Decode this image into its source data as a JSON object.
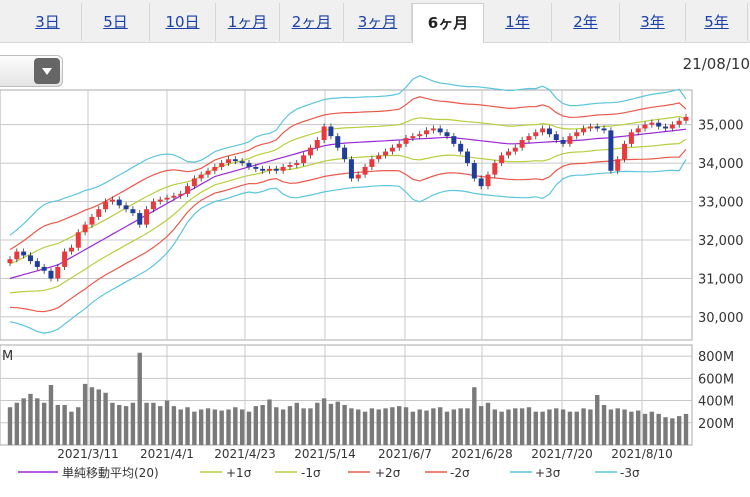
{
  "tabs": [
    {
      "label": "3日"
    },
    {
      "label": "5日"
    },
    {
      "label": "10日"
    },
    {
      "label": "1ヶ月"
    },
    {
      "label": "2ヶ月"
    },
    {
      "label": "3ヶ月"
    },
    {
      "label": "6ヶ月",
      "active": true
    },
    {
      "label": "1年"
    },
    {
      "label": "2年"
    },
    {
      "label": "3年"
    },
    {
      "label": "5年"
    }
  ],
  "header": {
    "date": "21/08/10"
  },
  "colors": {
    "up": "#e8393d",
    "down": "#1f3d9a",
    "ma": "#9b27d6",
    "s1": "#b7cf3e",
    "s2": "#e8594a",
    "s3": "#5bc6dc",
    "volume": "#7a7a7a",
    "grid": "#c8c8c8"
  },
  "chart_data": [
    {
      "type": "line",
      "title": "",
      "y_ticks": [
        "35,000",
        "34,000",
        "33,000",
        "32,000",
        "31,000",
        "30,000"
      ],
      "y_tick_values": [
        35000,
        34000,
        33000,
        32000,
        31000,
        30000
      ],
      "ylim": [
        29400,
        35900
      ],
      "x_ticks": [
        "2021/3/11",
        "2021/4/1",
        "2021/4/23",
        "2021/5/14",
        "2021/6/7",
        "2021/6/28",
        "2021/7/20",
        "2021/8/10"
      ],
      "legend": [
        {
          "name": "単純移動平均(20)",
          "color": "#9b27d6"
        },
        {
          "name": "+1σ",
          "color": "#b7cf3e"
        },
        {
          "name": "-1σ",
          "color": "#b7cf3e"
        },
        {
          "name": "+2σ",
          "color": "#e8594a"
        },
        {
          "name": "-2σ",
          "color": "#e8594a"
        },
        {
          "name": "+3σ",
          "color": "#5bc6dc"
        },
        {
          "name": "-3σ",
          "color": "#5bc6dc"
        }
      ],
      "close": [
        31500,
        31700,
        31600,
        31450,
        31300,
        31200,
        31000,
        31300,
        31700,
        31800,
        32200,
        32400,
        32600,
        32800,
        33000,
        33050,
        32900,
        32800,
        32700,
        32400,
        32800,
        33000,
        33050,
        33100,
        33150,
        33200,
        33400,
        33600,
        33700,
        33800,
        33900,
        34000,
        34100,
        34050,
        34000,
        33900,
        33850,
        33800,
        33850,
        33800,
        33900,
        33950,
        34000,
        34200,
        34400,
        34600,
        34950,
        34700,
        34400,
        34100,
        33600,
        33700,
        33900,
        34100,
        34200,
        34300,
        34400,
        34500,
        34650,
        34700,
        34750,
        34850,
        34900,
        34800,
        34700,
        34500,
        34300,
        34000,
        33600,
        33400,
        33700,
        34000,
        34200,
        34300,
        34400,
        34600,
        34700,
        34800,
        34900,
        34750,
        34600,
        34500,
        34700,
        34800,
        34900,
        34950,
        34900,
        34850,
        33800,
        34100,
        34500,
        34800,
        34900,
        35000,
        35050,
        34950,
        34900,
        35000,
        35100,
        35200
      ],
      "ma": [
        31000,
        31050,
        31100,
        31150,
        31200,
        31250,
        31300,
        31350,
        31450,
        31550,
        31650,
        31750,
        31850,
        31950,
        32050,
        32150,
        32250,
        32350,
        32450,
        32550,
        32650,
        32750,
        32850,
        32950,
        33050,
        33150,
        33250,
        33350,
        33450,
        33550,
        33650,
        33700,
        33750,
        33800,
        33850,
        33900,
        33950,
        34000,
        34050,
        34100,
        34150,
        34200,
        34250,
        34300,
        34350,
        34400,
        34450,
        34480,
        34500,
        34520,
        34530,
        34540,
        34550,
        34560,
        34570,
        34580,
        34590,
        34600,
        34610,
        34620,
        34630,
        34640,
        34650,
        34660,
        34670,
        34660,
        34640,
        34620,
        34600,
        34580,
        34560,
        34540,
        34520,
        34500,
        34500,
        34510,
        34520,
        34530,
        34540,
        34550,
        34560,
        34570,
        34580,
        34590,
        34600,
        34620,
        34640,
        34650,
        34660,
        34680,
        34700,
        34720,
        34740,
        34760,
        34780,
        34800,
        34820,
        34840,
        34860,
        34880
      ]
    },
    {
      "type": "bar",
      "title": "",
      "unit_label": "M",
      "y_ticks": [
        "800M",
        "600M",
        "400M",
        "200M"
      ],
      "y_tick_values": [
        800,
        600,
        400,
        200
      ],
      "ylim": [
        0,
        900
      ],
      "values": [
        340,
        380,
        420,
        460,
        420,
        380,
        540,
        360,
        360,
        300,
        340,
        550,
        520,
        500,
        470,
        380,
        360,
        350,
        380,
        830,
        380,
        380,
        350,
        400,
        350,
        320,
        340,
        300,
        320,
        330,
        320,
        310,
        320,
        340,
        320,
        300,
        350,
        360,
        410,
        340,
        320,
        350,
        380,
        330,
        330,
        380,
        420,
        370,
        390,
        360,
        330,
        320,
        300,
        330,
        320,
        330,
        340,
        350,
        340,
        300,
        320,
        310,
        330,
        340,
        300,
        320,
        330,
        330,
        520,
        350,
        380,
        320,
        300,
        320,
        330,
        330,
        340,
        300,
        300,
        320,
        330,
        320,
        300,
        300,
        330,
        320,
        450,
        360,
        320,
        330,
        320,
        300,
        310,
        280,
        300,
        280,
        250,
        240,
        260,
        280
      ]
    }
  ]
}
